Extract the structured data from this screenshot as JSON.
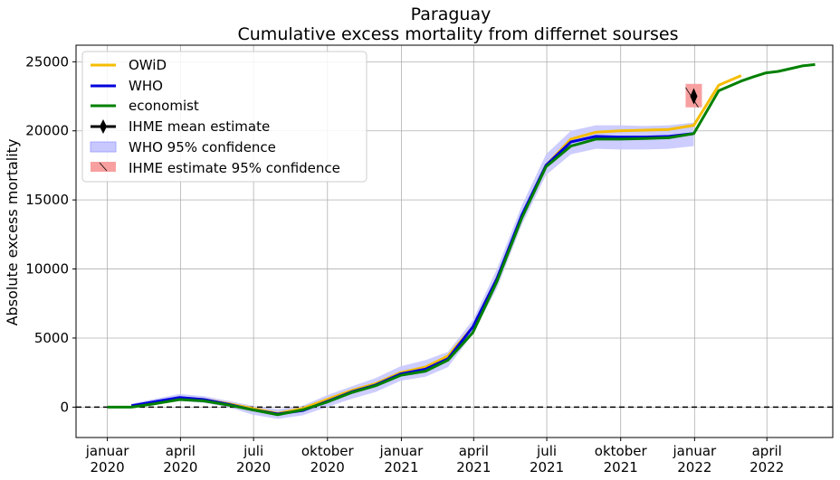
{
  "chart_data": {
    "type": "line",
    "title": "Paraguay",
    "subtitle": "Cumulative excess mortality from differnet sourses",
    "xlabel": "",
    "ylabel": "Absolute excess mortality",
    "xlim": [
      "2019-11-23",
      "2022-06-22"
    ],
    "ylim": [
      -2200,
      26200
    ],
    "grid": true,
    "legend_position": "top-left",
    "x_ticks": [
      {
        "date": "2020-01-01",
        "line1": "januar",
        "line2": "2020"
      },
      {
        "date": "2020-04-01",
        "line1": "april",
        "line2": "2020"
      },
      {
        "date": "2020-07-01",
        "line1": "juli",
        "line2": "2020"
      },
      {
        "date": "2020-10-01",
        "line1": "oktober",
        "line2": "2020"
      },
      {
        "date": "2021-01-01",
        "line1": "januar",
        "line2": "2021"
      },
      {
        "date": "2021-04-01",
        "line1": "april",
        "line2": "2021"
      },
      {
        "date": "2021-07-01",
        "line1": "juli",
        "line2": "2021"
      },
      {
        "date": "2021-10-01",
        "line1": "oktober",
        "line2": "2021"
      },
      {
        "date": "2022-01-01",
        "line1": "januar",
        "line2": "2022"
      },
      {
        "date": "2022-04-01",
        "line1": "april",
        "line2": "2022"
      }
    ],
    "y_ticks": [
      0,
      5000,
      10000,
      15000,
      20000,
      25000
    ],
    "y_tick_labels": [
      "0",
      "5000",
      "10000",
      "15000",
      "20000",
      "25000"
    ],
    "reference_line": {
      "y": 0,
      "style": "dashed",
      "color": "#000000"
    },
    "series": [
      {
        "name": "OWiD",
        "color": "#f5bd00",
        "x": [
          "2020-01-31",
          "2020-02-29",
          "2020-03-31",
          "2020-04-30",
          "2020-05-31",
          "2020-06-30",
          "2020-07-31",
          "2020-08-31",
          "2020-09-30",
          "2020-10-31",
          "2020-11-30",
          "2020-12-31",
          "2021-01-31",
          "2021-02-28",
          "2021-03-31",
          "2021-04-30",
          "2021-05-31",
          "2021-06-30",
          "2021-07-31",
          "2021-08-31",
          "2021-09-30",
          "2021-10-31",
          "2021-11-30",
          "2021-12-31",
          "2022-01-31",
          "2022-02-28"
        ],
        "y": [
          100,
          300,
          650,
          550,
          250,
          -100,
          -450,
          -100,
          550,
          1200,
          1700,
          2500,
          2900,
          3700,
          5800,
          9300,
          13800,
          17500,
          19400,
          19900,
          20000,
          20050,
          20100,
          20400,
          23300,
          24000
        ]
      },
      {
        "name": "WHO",
        "color": "#0000dd",
        "x": [
          "2020-01-31",
          "2020-02-29",
          "2020-03-31",
          "2020-04-30",
          "2020-05-31",
          "2020-06-30",
          "2020-07-31",
          "2020-08-31",
          "2020-09-30",
          "2020-10-31",
          "2020-11-30",
          "2020-12-31",
          "2021-01-31",
          "2021-02-28",
          "2021-03-31",
          "2021-04-30",
          "2021-05-31",
          "2021-06-30",
          "2021-07-31",
          "2021-08-31",
          "2021-09-30",
          "2021-10-31",
          "2021-11-30",
          "2021-12-31"
        ],
        "y": [
          100,
          400,
          700,
          550,
          200,
          -200,
          -500,
          -250,
          400,
          1100,
          1600,
          2400,
          2750,
          3500,
          5800,
          9300,
          13900,
          17500,
          19200,
          19600,
          19550,
          19550,
          19600,
          19800
        ],
        "ci_lower": [
          0,
          200,
          450,
          300,
          0,
          -550,
          -850,
          -600,
          0,
          600,
          1100,
          1900,
          2200,
          2900,
          5300,
          8600,
          13200,
          16800,
          18300,
          18700,
          18650,
          18650,
          18700,
          18900
        ],
        "ci_upper": [
          250,
          600,
          950,
          800,
          450,
          100,
          -150,
          100,
          850,
          1500,
          2100,
          2950,
          3400,
          4000,
          6300,
          10000,
          14600,
          18300,
          20000,
          20400,
          20400,
          20350,
          20400,
          20600
        ]
      },
      {
        "name": "economist",
        "color": "#008000",
        "x": [
          "2020-01-01",
          "2020-01-31",
          "2020-02-29",
          "2020-03-31",
          "2020-04-30",
          "2020-05-31",
          "2020-06-30",
          "2020-07-31",
          "2020-08-31",
          "2020-09-30",
          "2020-10-31",
          "2020-11-30",
          "2020-12-31",
          "2021-01-31",
          "2021-02-28",
          "2021-03-31",
          "2021-04-30",
          "2021-05-31",
          "2021-06-30",
          "2021-07-31",
          "2021-08-31",
          "2021-09-30",
          "2021-10-31",
          "2021-11-30",
          "2021-12-31",
          "2022-01-31",
          "2022-02-28",
          "2022-03-15",
          "2022-03-31",
          "2022-04-15",
          "2022-04-30",
          "2022-05-15",
          "2022-05-31"
        ],
        "y": [
          0,
          0,
          250,
          550,
          450,
          150,
          -200,
          -550,
          -200,
          350,
          1050,
          1550,
          2300,
          2600,
          3400,
          5400,
          9100,
          13700,
          17400,
          18900,
          19400,
          19400,
          19450,
          19500,
          19800,
          22900,
          23600,
          23900,
          24200,
          24300,
          24500,
          24700,
          24800
        ]
      }
    ],
    "ihme": {
      "mean_name": "IHME mean estimate",
      "ci_name": " IHME estimate 95% confidence",
      "date": "2021-12-31",
      "mean": 22500,
      "ci_lower": 21700,
      "ci_upper": 23400,
      "marker": "thin-diamond",
      "mean_color": "#000000",
      "ci_color": "#f8a0a0"
    },
    "who_ci_name": "WHO 95% confidence",
    "who_ci_color": "#c8c8ff"
  }
}
